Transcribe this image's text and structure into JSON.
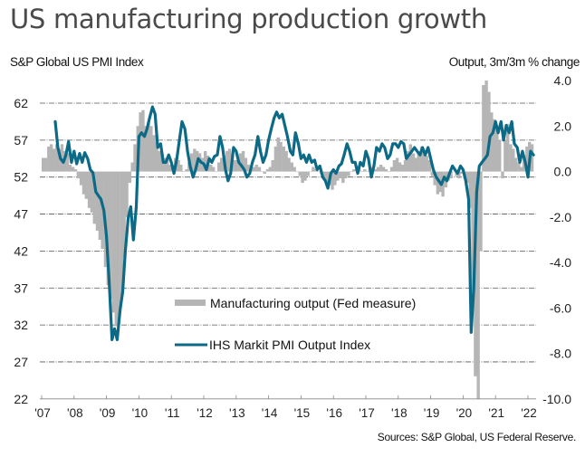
{
  "header": {
    "title": "US manufacturing production growth",
    "left_axis_caption": "S&P Global US PMI Index",
    "right_axis_caption": "Output, 3m/3m % change",
    "source": "Sources: S&P Global, US Federal Reserve."
  },
  "colors": {
    "pmi_line": "#0d6a86",
    "output_bars": "#b5b5b5",
    "gridline": "#555555",
    "text": "#222222"
  },
  "chart_data": {
    "type": "bar+line",
    "title": "US manufacturing production growth",
    "xlabel": "",
    "ylabel_left": "S&P Global US PMI Index",
    "ylabel_right": "Output, 3m/3m % change",
    "x_tick_labels": [
      "'07",
      "'08",
      "'09",
      "'10",
      "'11",
      "'12",
      "'13",
      "'14",
      "'15",
      "'16",
      "'17",
      "'18",
      "'19",
      "'20",
      "'21",
      "'22"
    ],
    "x_range": [
      2007.0,
      2022.25
    ],
    "left_axis": {
      "ticks": [
        22,
        27,
        32,
        37,
        42,
        47,
        52,
        57,
        62
      ],
      "range": [
        22,
        65
      ]
    },
    "right_axis": {
      "ticks": [
        4.0,
        2.0,
        0.0,
        -2.0,
        -4.0,
        -6.0,
        -8.0,
        -10.0
      ],
      "tick_labels": [
        "4.0",
        "2.0",
        "0.0",
        "-2.0",
        "-4.0",
        "-6.0",
        "-8.0",
        "-10.0"
      ],
      "range": [
        -10,
        4
      ]
    },
    "grid": true,
    "legend_position": "center-left-lower",
    "series": [
      {
        "name": "Manufacturing output (Fed measure)",
        "type": "bar",
        "axis": "right",
        "x": [
          2007.0,
          2007.08,
          2007.17,
          2007.25,
          2007.33,
          2007.42,
          2007.5,
          2007.58,
          2007.67,
          2007.75,
          2007.83,
          2007.92,
          2008.0,
          2008.08,
          2008.17,
          2008.25,
          2008.33,
          2008.42,
          2008.5,
          2008.58,
          2008.67,
          2008.75,
          2008.83,
          2008.92,
          2009.0,
          2009.08,
          2009.17,
          2009.25,
          2009.33,
          2009.42,
          2009.5,
          2009.58,
          2009.67,
          2009.75,
          2009.83,
          2009.92,
          2010.0,
          2010.08,
          2010.17,
          2010.25,
          2010.33,
          2010.42,
          2010.5,
          2010.58,
          2010.67,
          2010.75,
          2010.83,
          2010.92,
          2011.0,
          2011.08,
          2011.17,
          2011.25,
          2011.33,
          2011.42,
          2011.5,
          2011.58,
          2011.67,
          2011.75,
          2011.83,
          2011.92,
          2012.0,
          2012.08,
          2012.17,
          2012.25,
          2012.33,
          2012.42,
          2012.5,
          2012.58,
          2012.67,
          2012.75,
          2012.83,
          2012.92,
          2013.0,
          2013.08,
          2013.17,
          2013.25,
          2013.33,
          2013.42,
          2013.5,
          2013.58,
          2013.67,
          2013.75,
          2013.83,
          2013.92,
          2014.0,
          2014.08,
          2014.17,
          2014.25,
          2014.33,
          2014.42,
          2014.5,
          2014.58,
          2014.67,
          2014.75,
          2014.83,
          2014.92,
          2015.0,
          2015.08,
          2015.17,
          2015.25,
          2015.33,
          2015.42,
          2015.5,
          2015.58,
          2015.67,
          2015.75,
          2015.83,
          2015.92,
          2016.0,
          2016.08,
          2016.17,
          2016.25,
          2016.33,
          2016.42,
          2016.5,
          2016.58,
          2016.67,
          2016.75,
          2016.83,
          2016.92,
          2017.0,
          2017.08,
          2017.17,
          2017.25,
          2017.33,
          2017.42,
          2017.5,
          2017.58,
          2017.67,
          2017.75,
          2017.83,
          2017.92,
          2018.0,
          2018.08,
          2018.17,
          2018.25,
          2018.33,
          2018.42,
          2018.5,
          2018.58,
          2018.67,
          2018.75,
          2018.83,
          2018.92,
          2019.0,
          2019.08,
          2019.17,
          2019.25,
          2019.33,
          2019.42,
          2019.5,
          2019.58,
          2019.67,
          2019.75,
          2019.83,
          2019.92,
          2020.0,
          2020.08,
          2020.17,
          2020.25,
          2020.33,
          2020.42,
          2020.5,
          2020.58,
          2020.67,
          2020.75,
          2020.83,
          2020.92,
          2021.0,
          2021.08,
          2021.17,
          2021.25,
          2021.33,
          2021.42,
          2021.5,
          2021.58,
          2021.67,
          2021.75,
          2021.83,
          2021.92,
          2022.0,
          2022.08
        ],
        "values": [
          0.6,
          0.6,
          1.1,
          1.2,
          1.0,
          1.2,
          1.0,
          1.2,
          0.9,
          0.8,
          0.3,
          0.2,
          0.1,
          -0.3,
          -0.6,
          -1.0,
          -1.2,
          -1.6,
          -1.8,
          -2.3,
          -2.6,
          -3.0,
          -3.4,
          -4.2,
          -5.0,
          -5.6,
          -6.2,
          -6.8,
          -6.6,
          -5.6,
          -3.8,
          -2.0,
          -0.5,
          0.4,
          1.2,
          2.0,
          2.6,
          2.7,
          2.0,
          2.2,
          2.0,
          1.6,
          1.3,
          0.9,
          0.8,
          0.6,
          0.5,
          0.3,
          0.3,
          0.6,
          0.5,
          0.3,
          0.0,
          0.1,
          0.4,
          0.8,
          1.0,
          0.9,
          0.8,
          0.6,
          0.9,
          0.7,
          0.3,
          0.2,
          0.0,
          0.4,
          0.6,
          0.7,
          0.9,
          1.0,
          0.8,
          0.5,
          0.5,
          0.8,
          0.9,
          0.6,
          0.3,
          0.1,
          0.2,
          0.3,
          0.2,
          0.0,
          -0.1,
          0.1,
          0.2,
          0.5,
          1.1,
          1.5,
          1.3,
          1.1,
          0.9,
          0.6,
          0.4,
          0.2,
          0.0,
          -0.2,
          -0.5,
          -0.4,
          -0.2,
          0.0,
          0.2,
          0.1,
          0.0,
          -0.1,
          -0.3,
          -0.5,
          -0.6,
          -0.8,
          -0.6,
          -0.4,
          -0.3,
          -0.5,
          -0.3,
          -0.2,
          0.0,
          0.1,
          0.2,
          0.1,
          0.0,
          0.1,
          0.0,
          0.1,
          0.2,
          0.1,
          0.2,
          0.3,
          0.2,
          0.1,
          0.0,
          0.2,
          0.5,
          0.6,
          0.4,
          0.3,
          0.5,
          0.9,
          1.2,
          0.8,
          0.6,
          0.9,
          1.1,
          0.9,
          0.7,
          0.5,
          -0.2,
          -0.6,
          -1.0,
          -0.9,
          -1.1,
          -0.7,
          -0.4,
          -0.3,
          0.0,
          -0.2,
          -0.3,
          -0.1,
          -0.3,
          -0.5,
          -1.6,
          -5.5,
          -9.0,
          -10.0,
          -3.5,
          3.8,
          4.0,
          3.5,
          2.6,
          2.3,
          1.8,
          1.4,
          -0.3,
          1.4,
          2.1,
          1.2,
          1.0,
          0.6,
          0.4,
          0.2,
          0.7,
          1.1,
          1.3,
          1.2
        ]
      },
      {
        "name": "IHS Markit PMI Output Index",
        "type": "line",
        "axis": "left",
        "x": [
          2007.42,
          2007.5,
          2007.58,
          2007.67,
          2007.75,
          2007.83,
          2007.92,
          2008.0,
          2008.08,
          2008.17,
          2008.25,
          2008.33,
          2008.42,
          2008.5,
          2008.58,
          2008.67,
          2008.75,
          2008.83,
          2008.92,
          2009.0,
          2009.08,
          2009.17,
          2009.25,
          2009.33,
          2009.42,
          2009.5,
          2009.58,
          2009.67,
          2009.75,
          2009.83,
          2009.92,
          2010.0,
          2010.08,
          2010.17,
          2010.25,
          2010.33,
          2010.42,
          2010.5,
          2010.58,
          2010.67,
          2010.75,
          2010.83,
          2010.92,
          2011.0,
          2011.08,
          2011.17,
          2011.25,
          2011.33,
          2011.42,
          2011.5,
          2011.58,
          2011.67,
          2011.75,
          2011.83,
          2011.92,
          2012.0,
          2012.08,
          2012.17,
          2012.25,
          2012.33,
          2012.42,
          2012.5,
          2012.58,
          2012.67,
          2012.75,
          2012.83,
          2012.92,
          2013.0,
          2013.08,
          2013.17,
          2013.25,
          2013.33,
          2013.42,
          2013.5,
          2013.58,
          2013.67,
          2013.75,
          2013.83,
          2013.92,
          2014.0,
          2014.08,
          2014.17,
          2014.25,
          2014.33,
          2014.42,
          2014.5,
          2014.58,
          2014.67,
          2014.75,
          2014.83,
          2014.92,
          2015.0,
          2015.08,
          2015.17,
          2015.25,
          2015.33,
          2015.42,
          2015.5,
          2015.58,
          2015.67,
          2015.75,
          2015.83,
          2015.92,
          2016.0,
          2016.08,
          2016.17,
          2016.25,
          2016.33,
          2016.42,
          2016.5,
          2016.58,
          2016.67,
          2016.75,
          2016.83,
          2016.92,
          2017.0,
          2017.08,
          2017.17,
          2017.25,
          2017.33,
          2017.42,
          2017.5,
          2017.58,
          2017.67,
          2017.75,
          2017.83,
          2017.92,
          2018.0,
          2018.08,
          2018.17,
          2018.25,
          2018.33,
          2018.42,
          2018.5,
          2018.58,
          2018.67,
          2018.75,
          2018.83,
          2018.92,
          2019.0,
          2019.08,
          2019.17,
          2019.25,
          2019.33,
          2019.42,
          2019.5,
          2019.58,
          2019.67,
          2019.75,
          2019.83,
          2019.92,
          2020.0,
          2020.08,
          2020.17,
          2020.25,
          2020.33,
          2020.42,
          2020.5,
          2020.58,
          2020.67,
          2020.75,
          2020.83,
          2020.92,
          2021.0,
          2021.08,
          2021.17,
          2021.25,
          2021.33,
          2021.42,
          2021.5,
          2021.58,
          2021.67,
          2021.75,
          2021.83,
          2021.92,
          2022.0,
          2022.08,
          2022.17
        ],
        "values": [
          59.5,
          56.0,
          54.5,
          54.0,
          55.0,
          56.8,
          54.0,
          55.5,
          53.8,
          55.2,
          54.0,
          55.3,
          54.5,
          53.0,
          52.6,
          50.0,
          49.5,
          49.0,
          47.5,
          44.0,
          38.0,
          30.0,
          31.5,
          30.0,
          34.0,
          36.5,
          42.0,
          46.5,
          48.0,
          43.5,
          48.0,
          57.5,
          58.0,
          57.5,
          58.5,
          60.0,
          61.5,
          60.5,
          56.0,
          56.5,
          54.0,
          54.0,
          55.0,
          54.0,
          52.5,
          54.5,
          57.0,
          59.5,
          58.5,
          55.5,
          53.5,
          52.0,
          53.0,
          54.5,
          54.0,
          53.8,
          53.0,
          54.5,
          54.0,
          54.8,
          55.0,
          57.5,
          56.0,
          53.0,
          51.5,
          52.5,
          56.0,
          55.5,
          54.0,
          53.5,
          53.0,
          52.0,
          52.5,
          54.0,
          55.0,
          57.5,
          55.5,
          54.0,
          55.0,
          57.0,
          58.5,
          60.0,
          60.8,
          60.0,
          60.5,
          59.0,
          57.5,
          55.5,
          55.0,
          58.0,
          56.5,
          54.5,
          55.0,
          54.0,
          55.0,
          54.0,
          54.3,
          53.0,
          53.5,
          52.0,
          51.5,
          50.5,
          52.5,
          53.0,
          52.5,
          53.5,
          53.8,
          55.0,
          56.5,
          55.5,
          54.0,
          54.0,
          52.5,
          54.0,
          53.5,
          55.5,
          54.5,
          52.0,
          53.5,
          56.0,
          55.5,
          56.5,
          56.0,
          54.5,
          55.0,
          56.5,
          56.5,
          56.0,
          56.8,
          56.5,
          54.5,
          55.0,
          55.5,
          56.0,
          55.5,
          55.0,
          56.0,
          55.0,
          56.0,
          54.5,
          53.0,
          52.0,
          51.5,
          51.0,
          52.0,
          51.5,
          52.5,
          53.5,
          53.0,
          52.5,
          53.5,
          53.0,
          51.5,
          49.0,
          31.0,
          37.0,
          50.0,
          53.5,
          54.0,
          54.5,
          55.0,
          57.5,
          58.0,
          59.5,
          58.0,
          59.5,
          57.0,
          59.0,
          58.0,
          59.5,
          56.5,
          56.0,
          54.0,
          55.5,
          54.0,
          52.0,
          55.5,
          55.0
        ]
      }
    ]
  }
}
